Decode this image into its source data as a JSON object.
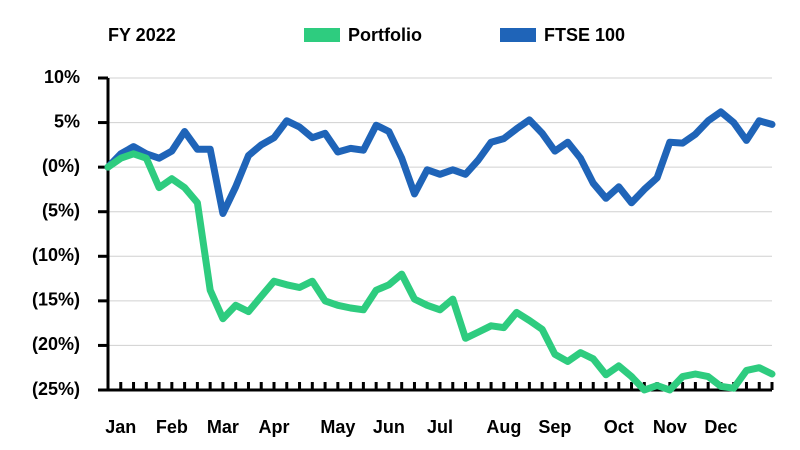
{
  "chart_data": {
    "type": "line",
    "title": "FY 2022",
    "categories": [
      null,
      "Jan",
      null,
      null,
      null,
      "Feb",
      null,
      null,
      null,
      "Mar",
      null,
      null,
      null,
      "Apr",
      null,
      null,
      null,
      null,
      "May",
      null,
      null,
      null,
      "Jun",
      null,
      null,
      null,
      "Jul",
      null,
      null,
      null,
      null,
      "Aug",
      null,
      null,
      null,
      "Sep",
      null,
      null,
      null,
      null,
      "Oct",
      null,
      null,
      null,
      "Nov",
      null,
      null,
      null,
      "Dec",
      null,
      null,
      null,
      null
    ],
    "series": [
      {
        "name": "Portfolio",
        "color": "#2ecc7f",
        "values": [
          0,
          1,
          1.5,
          1,
          -2.3,
          -1.3,
          -2.3,
          -4,
          -13.8,
          -17,
          -15.5,
          -16.2,
          -14.5,
          -12.8,
          -13.2,
          -13.5,
          -12.8,
          -15,
          -15.5,
          -15.8,
          -16,
          -13.8,
          -13.2,
          -12,
          -14.8,
          -15.5,
          -16,
          -14.8,
          -19.2,
          -18.5,
          -17.8,
          -18,
          -16.3,
          -17.2,
          -18.2,
          -21,
          -21.8,
          -20.8,
          -21.5,
          -23.3,
          -22.3,
          -23.5,
          -25,
          -24.5,
          -25,
          -23.5,
          -23.2,
          -23.5,
          -24.6,
          -24.8,
          -22.8,
          -22.5,
          -23.2
        ]
      },
      {
        "name": "FTSE 100",
        "color": "#1f64b8",
        "values": [
          0,
          1.5,
          2.3,
          1.5,
          1,
          1.8,
          4,
          2,
          2,
          -5.2,
          -2.2,
          1.3,
          2.5,
          3.3,
          5.2,
          4.5,
          3.3,
          3.8,
          1.7,
          2.1,
          1.9,
          4.7,
          4,
          1,
          -3,
          -0.3,
          -0.8,
          -0.3,
          -0.8,
          0.8,
          2.8,
          3.2,
          4.3,
          5.3,
          3.8,
          1.8,
          2.8,
          1,
          -1.8,
          -3.5,
          -2.2,
          -4,
          -2.5,
          -1.2,
          2.8,
          2.7,
          3.7,
          5.2,
          6.2,
          5,
          3,
          5.2,
          4.8
        ]
      }
    ],
    "ylim": [
      -25,
      10
    ],
    "yticks": [
      {
        "value": -25,
        "label": "(25%)"
      },
      {
        "value": -20,
        "label": "(20%)"
      },
      {
        "value": -15,
        "label": "(15%)"
      },
      {
        "value": -10,
        "label": "(10%)"
      },
      {
        "value": -5,
        "label": "(5%)"
      },
      {
        "value": 0,
        "label": "(0%)"
      },
      {
        "value": 5,
        "label": "5%"
      },
      {
        "value": 10,
        "label": "10%"
      }
    ],
    "grid": true
  }
}
